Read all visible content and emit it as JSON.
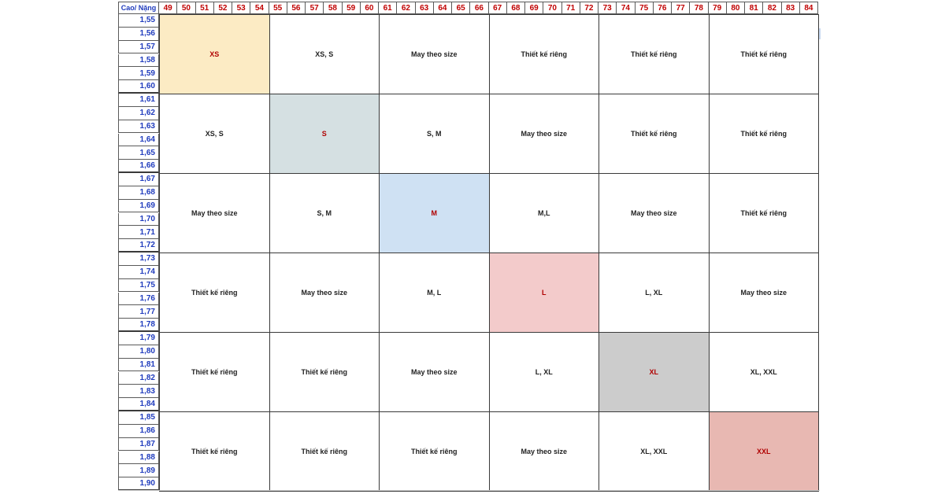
{
  "corner_label": "Cao/ Nặng",
  "weights": [
    "49",
    "50",
    "51",
    "52",
    "53",
    "54",
    "55",
    "56",
    "57",
    "58",
    "59",
    "60",
    "61",
    "62",
    "63",
    "64",
    "65",
    "66",
    "67",
    "68",
    "69",
    "70",
    "71",
    "72",
    "73",
    "74",
    "75",
    "76",
    "77",
    "78",
    "79",
    "80",
    "81",
    "82",
    "83",
    "84"
  ],
  "heights": [
    "1,55",
    "1,56",
    "1,57",
    "1,58",
    "1,59",
    "1,60",
    "1,61",
    "1,62",
    "1,63",
    "1,64",
    "1,65",
    "1,66",
    "1,67",
    "1,68",
    "1,69",
    "1,70",
    "1,71",
    "1,72",
    "1,73",
    "1,74",
    "1,75",
    "1,76",
    "1,77",
    "1,78",
    "1,79",
    "1,80",
    "1,81",
    "1,82",
    "1,83",
    "1,84",
    "1,85",
    "1,86",
    "1,87",
    "1,88",
    "1,89",
    "1,90"
  ],
  "colors": {
    "XS": "#fcebc4",
    "S": "#d5e0e2",
    "M": "#cfe1f3",
    "L": "#f3cbcb",
    "XL": "#cccccc",
    "XXL": "#e8b8b2"
  },
  "rows": [
    [
      {
        "text": "XS",
        "fit": true,
        "color_key": "XS"
      },
      {
        "text": "XS, S"
      },
      {
        "text": "May theo size"
      },
      {
        "text": "Thiết kế riêng"
      },
      {
        "text": "Thiết kế riêng"
      },
      {
        "text": "Thiết kế riêng"
      }
    ],
    [
      {
        "text": "XS, S"
      },
      {
        "text": "S",
        "fit": true,
        "color_key": "S"
      },
      {
        "text": "S, M"
      },
      {
        "text": "May theo size"
      },
      {
        "text": "Thiết kế riêng"
      },
      {
        "text": "Thiết kế riêng"
      }
    ],
    [
      {
        "text": "May theo size"
      },
      {
        "text": "S, M"
      },
      {
        "text": "M",
        "fit": true,
        "color_key": "M"
      },
      {
        "text": "M,L"
      },
      {
        "text": "May theo size"
      },
      {
        "text": "Thiết kế riêng"
      }
    ],
    [
      {
        "text": "Thiết kế riêng"
      },
      {
        "text": "May theo size"
      },
      {
        "text": "M, L"
      },
      {
        "text": "L",
        "fit": true,
        "color_key": "L"
      },
      {
        "text": "L, XL"
      },
      {
        "text": "May theo size"
      }
    ],
    [
      {
        "text": "Thiết kế riêng"
      },
      {
        "text": "Thiết kế riêng"
      },
      {
        "text": "May theo size"
      },
      {
        "text": "L, XL"
      },
      {
        "text": "XL",
        "fit": true,
        "color_key": "XL"
      },
      {
        "text": "XL, XXL"
      }
    ],
    [
      {
        "text": "Thiết kế riêng"
      },
      {
        "text": "Thiết kế riêng"
      },
      {
        "text": "Thiết kế riêng"
      },
      {
        "text": "May theo size"
      },
      {
        "text": "XL, XXL"
      },
      {
        "text": "XXL",
        "fit": true,
        "color_key": "XXL"
      }
    ]
  ]
}
